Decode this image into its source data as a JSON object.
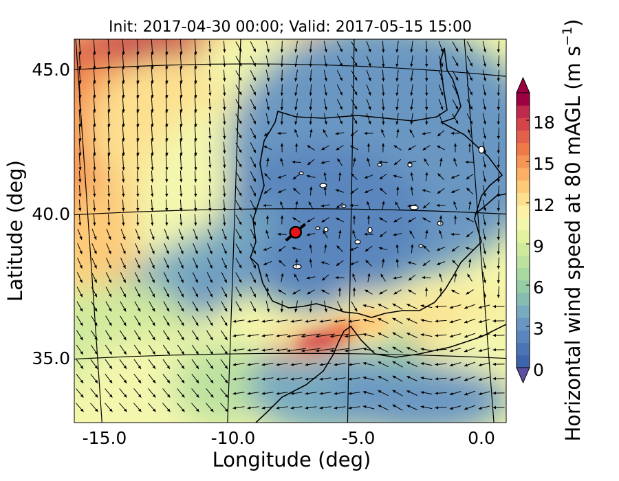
{
  "title": "Init: 2017-04-30 00:00; Valid: 2017-05-15 15:00",
  "xlabel": "Longitude (deg)",
  "ylabel": "Latitude (deg)",
  "x_ticks": [
    "-15.0",
    "-10.0",
    "-5.0",
    "0.0"
  ],
  "y_ticks": [
    "45.0",
    "40.0",
    "35.0"
  ],
  "colorbar": {
    "label": "Horizontal wind speed at 80 mAGL (m s",
    "label_sup": "−1",
    "label_end": ")",
    "ticks": [
      "0",
      "3",
      "6",
      "9",
      "12",
      "15",
      "18"
    ],
    "range": [
      0,
      20
    ],
    "extend": "both",
    "colors": [
      "#3f64ae",
      "#4a74b4",
      "#5a86bd",
      "#6a97c2",
      "#78aac0",
      "#86bdb0",
      "#96cca6",
      "#a8d7a2",
      "#bde2a0",
      "#d0ea9d",
      "#e3f29e",
      "#f3f7ae",
      "#fdf1a5",
      "#fde08f",
      "#fdca79",
      "#fbb066",
      "#f69656",
      "#ee7a4a",
      "#e3604a",
      "#d5444a",
      "#bf2a4c",
      "#9e0142"
    ],
    "extend_low": "#5e4fa2",
    "extend_high": "#9e0142"
  },
  "marker": {
    "lon": -7.7,
    "lat": 39.4,
    "color": "#e8141a"
  },
  "chart_data": {
    "type": "heatmap",
    "variable": "Horizontal wind speed at 80 mAGL",
    "units": "m s-1",
    "xlim": [
      -16.0,
      0.2
    ],
    "ylim": [
      32.7,
      46.2
    ],
    "regions": [
      {
        "lon": -13.0,
        "lat": 45.3,
        "speed": 19
      },
      {
        "lon": -14.5,
        "lat": 42.5,
        "speed": 16
      },
      {
        "lon": -10.5,
        "lat": 44.5,
        "speed": 11
      },
      {
        "lon": -7.0,
        "lat": 40.0,
        "speed": 2
      },
      {
        "lon": -11.0,
        "lat": 38.0,
        "speed": 4
      },
      {
        "lon": -14.5,
        "lat": 36.0,
        "speed": 9
      },
      {
        "lon": -5.8,
        "lat": 36.0,
        "speed": 17
      },
      {
        "lon": -2.0,
        "lat": 36.0,
        "speed": 13
      },
      {
        "lon": -3.0,
        "lat": 34.0,
        "speed": 3
      }
    ]
  }
}
